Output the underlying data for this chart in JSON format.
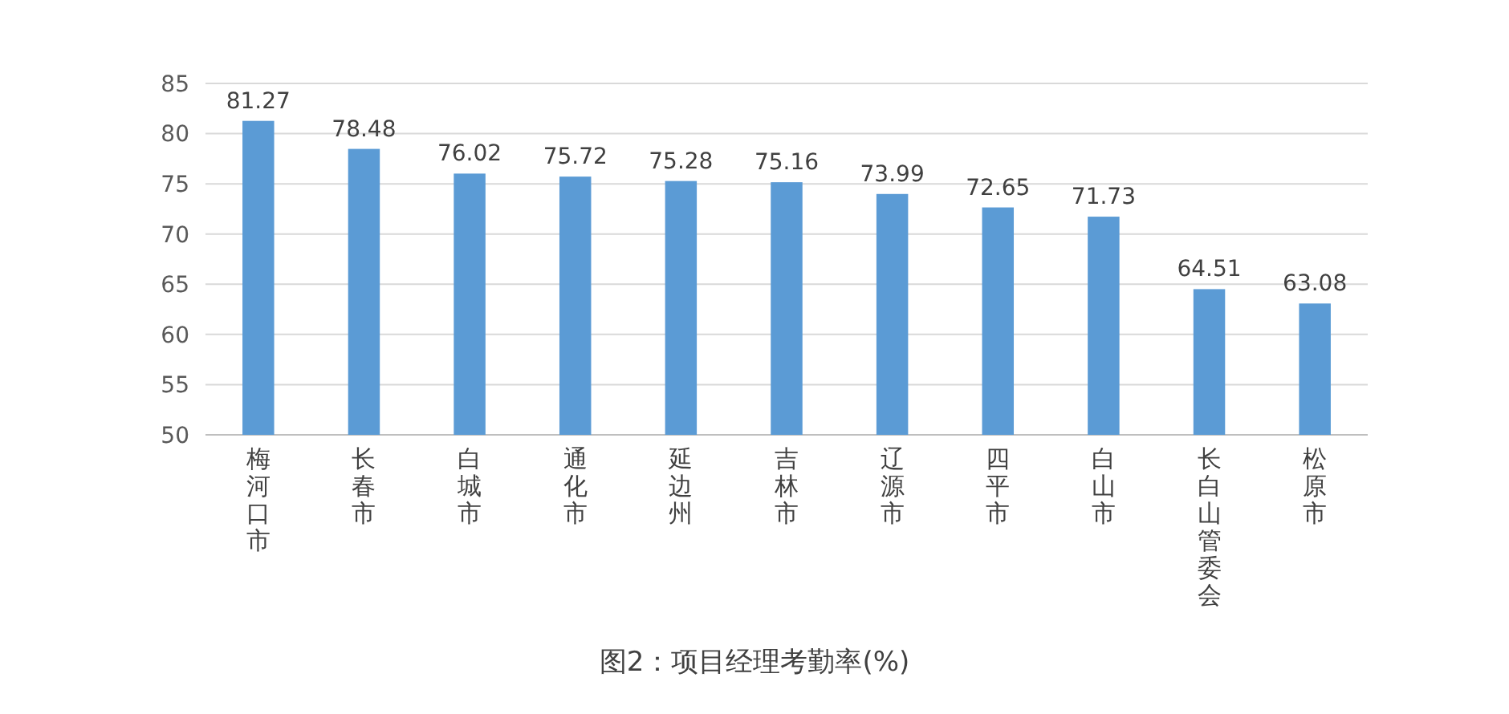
{
  "chart_data": {
    "type": "bar",
    "title": "图2：项目经理考勤率(%)",
    "categories": [
      "梅河口市",
      "长春市",
      "白城市",
      "通化市",
      "延边州",
      "吉林市",
      "辽源市",
      "四平市",
      "白山市",
      "长白山管委会",
      "松原市"
    ],
    "values": [
      81.27,
      78.48,
      76.02,
      75.72,
      75.28,
      75.16,
      73.99,
      72.65,
      71.73,
      64.51,
      63.08
    ],
    "color": "#5b9bd5",
    "data_labels": true,
    "grid": "y",
    "ylim": [
      50,
      85
    ],
    "yticks": [
      50,
      55,
      60,
      65,
      70,
      75,
      80,
      85
    ]
  }
}
